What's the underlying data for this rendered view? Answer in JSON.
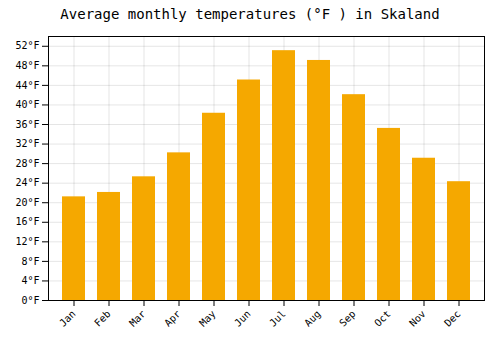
{
  "chart_data": {
    "type": "bar",
    "title": "Average monthly temperatures (°F ) in Skaland",
    "categories": [
      "Jan",
      "Feb",
      "Mar",
      "Apr",
      "May",
      "Jun",
      "Jul",
      "Aug",
      "Sep",
      "Oct",
      "Nov",
      "Dec"
    ],
    "values": [
      21.2,
      22.1,
      25.3,
      30.2,
      38.3,
      45.1,
      51.1,
      49.1,
      42.1,
      35.2,
      29.1,
      24.3
    ],
    "color": "#F5A800",
    "ylim": [
      0,
      54
    ],
    "yticks": [
      {
        "value": 0,
        "label": "0°F"
      },
      {
        "value": 4,
        "label": "4°F"
      },
      {
        "value": 8,
        "label": "8°F"
      },
      {
        "value": 12,
        "label": "12°F"
      },
      {
        "value": 16,
        "label": "16°F"
      },
      {
        "value": 20,
        "label": "20°F"
      },
      {
        "value": 24,
        "label": "24°F"
      },
      {
        "value": 28,
        "label": "28°F"
      },
      {
        "value": 32,
        "label": "32°F"
      },
      {
        "value": 36,
        "label": "36°F"
      },
      {
        "value": 40,
        "label": "40°F"
      },
      {
        "value": 44,
        "label": "44°F"
      },
      {
        "value": 48,
        "label": "48°F"
      },
      {
        "value": 52,
        "label": "52°F"
      }
    ],
    "grid": true
  }
}
